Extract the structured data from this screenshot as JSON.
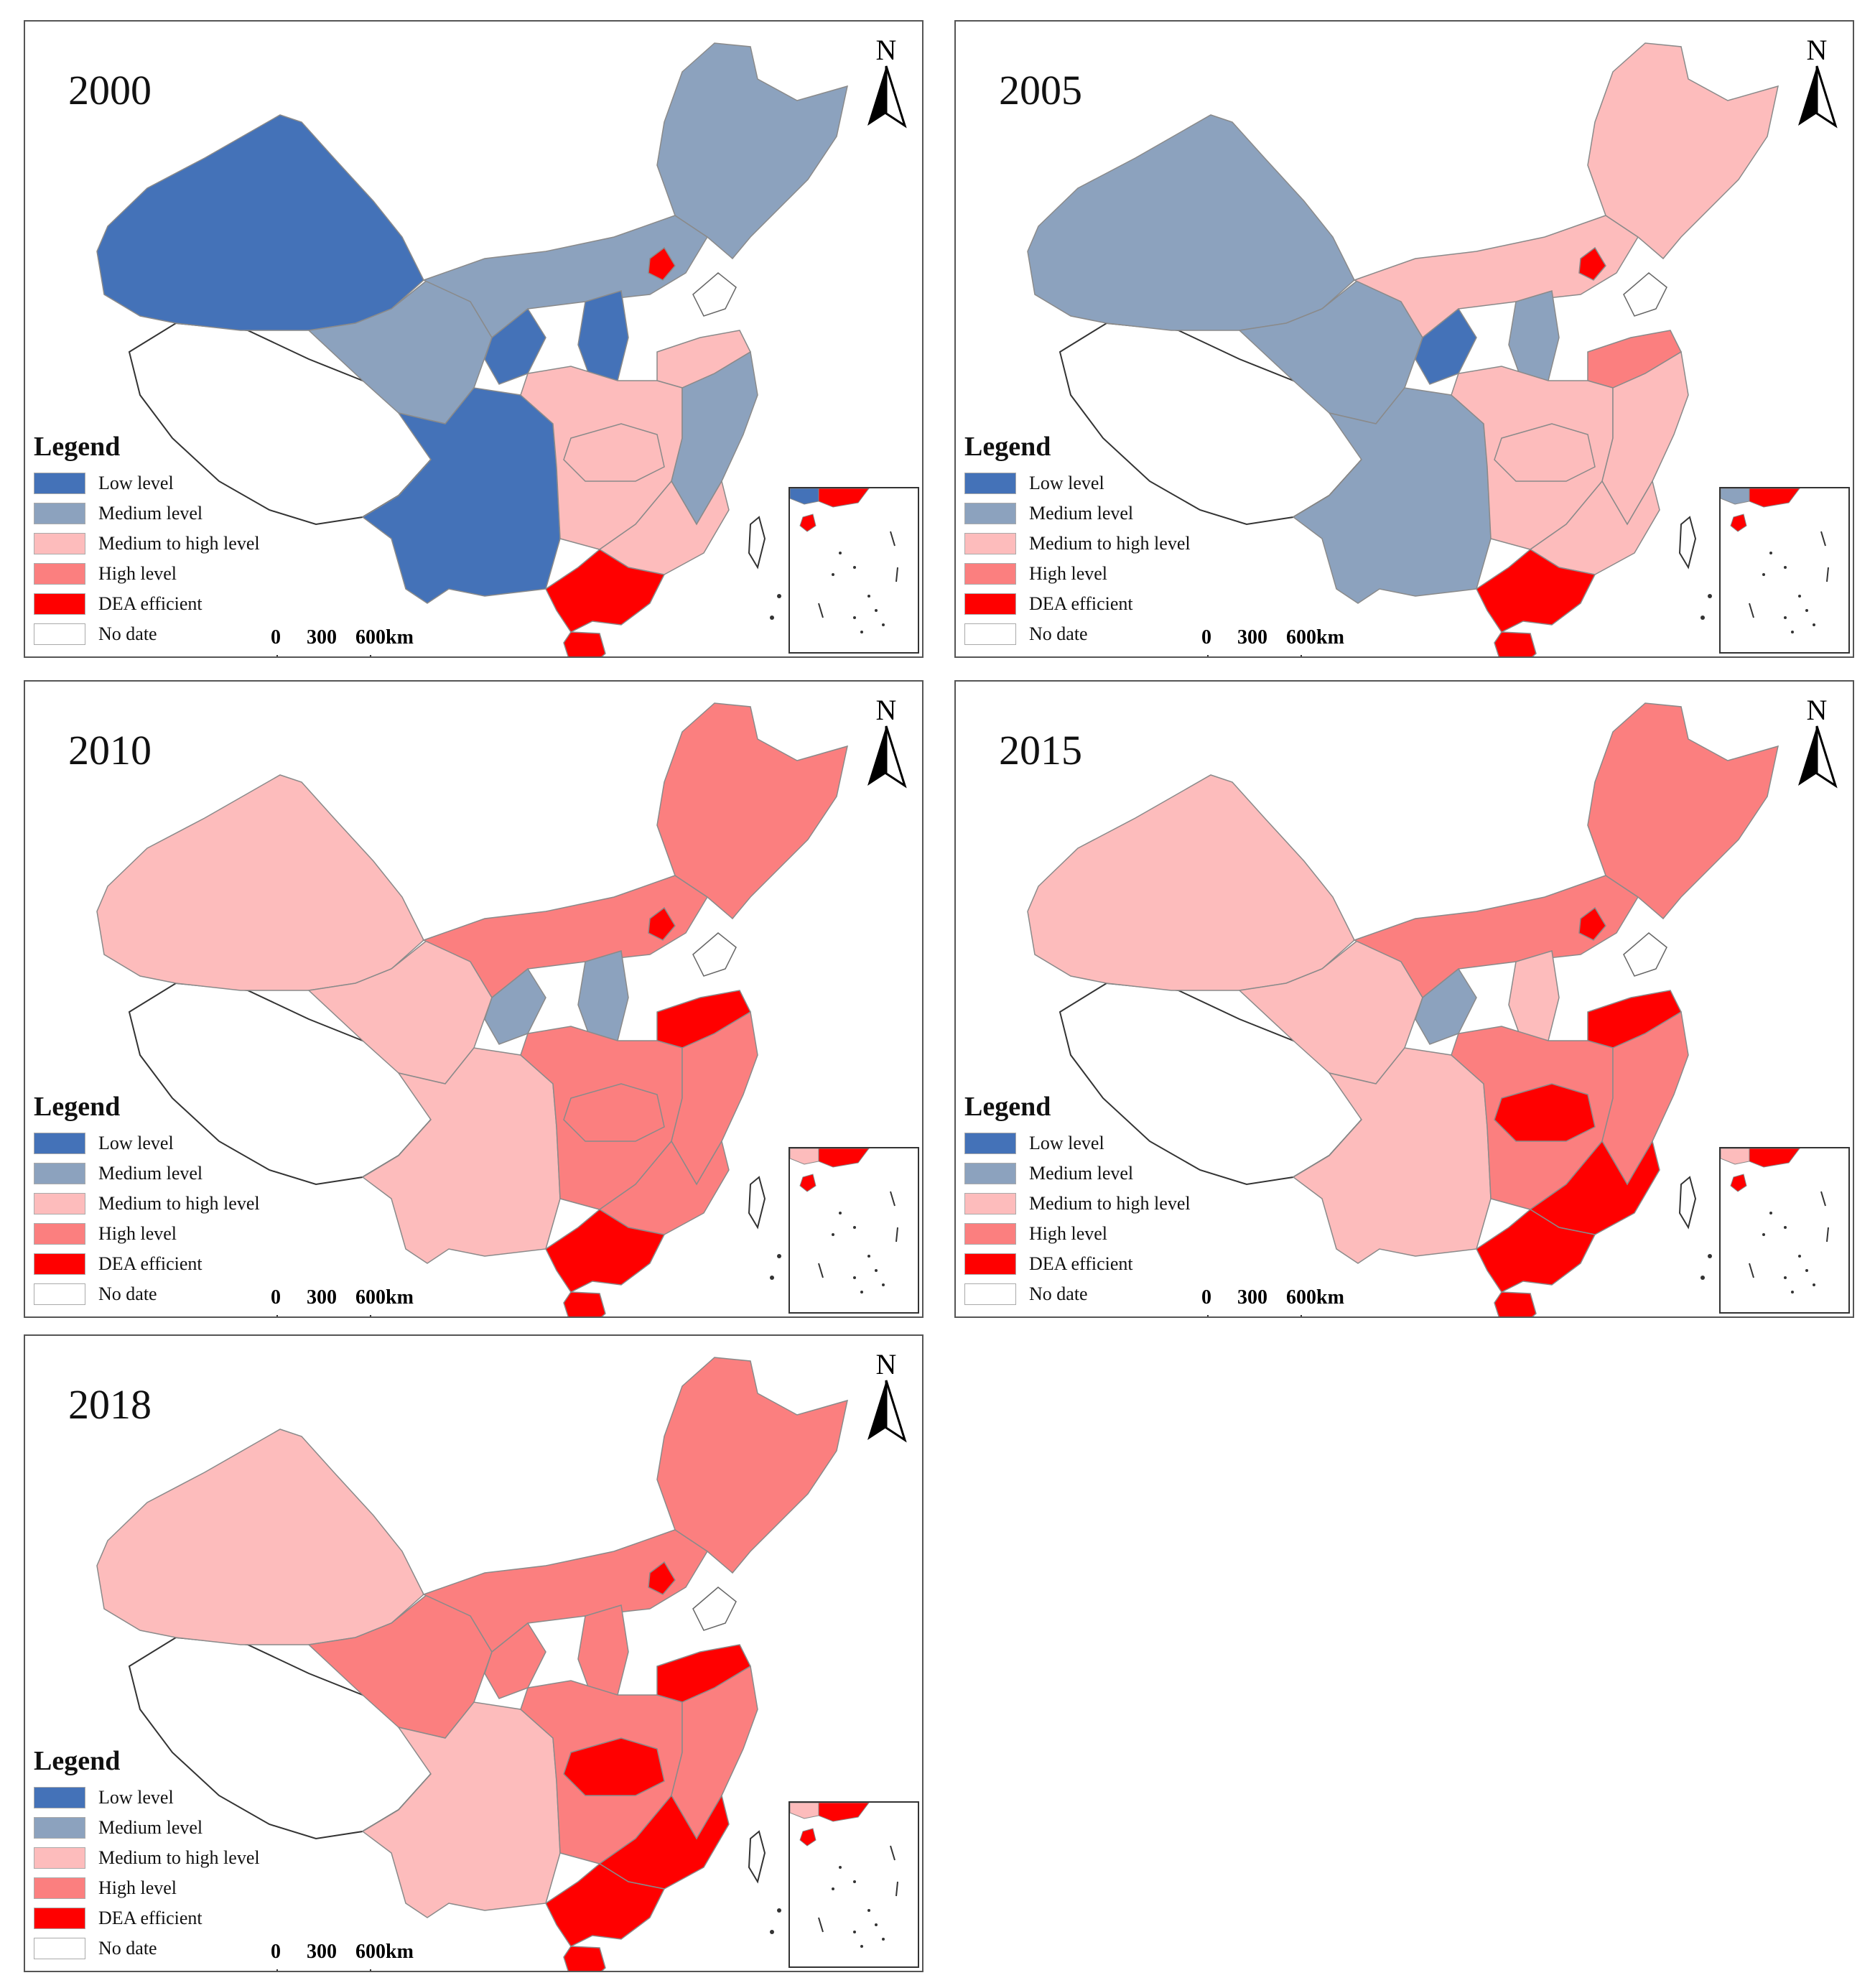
{
  "legend": {
    "title": "Legend",
    "items": [
      {
        "label": "Low level",
        "color": "#4472b8"
      },
      {
        "label": "Medium level",
        "color": "#8ca2be"
      },
      {
        "label": "Medium to high level",
        "color": "#fdbcbc"
      },
      {
        "label": "High level",
        "color": "#fb7f7f"
      },
      {
        "label": "DEA efficient",
        "color": "#ff0000"
      },
      {
        "label": "No date",
        "color": "#ffffff"
      }
    ]
  },
  "scale_bar": {
    "labels": [
      "0",
      "300",
      "600km"
    ]
  },
  "north_label": "N",
  "panels": [
    {
      "year": "2000",
      "regions": {
        "nw": "low",
        "qinghai": "medium",
        "tibet": "nodata",
        "sw": "low",
        "north_c": "medium",
        "ne": "medium",
        "central": "medium_high",
        "east": "medium",
        "se": "medium_high",
        "guangdong": "dea",
        "hainan": "dea",
        "beijing": "dea",
        "shandong": "medium_high",
        "hubei": "medium_high",
        "ningxia": "low",
        "shanxi": "low"
      }
    },
    {
      "year": "2005",
      "regions": {
        "nw": "medium",
        "qinghai": "medium",
        "tibet": "nodata",
        "sw": "medium",
        "north_c": "medium_high",
        "ne": "medium_high",
        "central": "medium_high",
        "east": "medium_high",
        "se": "medium_high",
        "guangdong": "dea",
        "hainan": "dea",
        "beijing": "dea",
        "shandong": "high",
        "hubei": "medium_high",
        "ningxia": "low",
        "shanxi": "medium"
      }
    },
    {
      "year": "2010",
      "regions": {
        "nw": "medium_high",
        "qinghai": "medium_high",
        "tibet": "nodata",
        "sw": "medium_high",
        "north_c": "high",
        "ne": "high",
        "central": "high",
        "east": "high",
        "se": "high",
        "guangdong": "dea",
        "hainan": "dea",
        "beijing": "dea",
        "shandong": "dea",
        "hubei": "high",
        "ningxia": "medium",
        "shanxi": "medium"
      }
    },
    {
      "year": "2015",
      "regions": {
        "nw": "medium_high",
        "qinghai": "medium_high",
        "tibet": "nodata",
        "sw": "medium_high",
        "north_c": "high",
        "ne": "high",
        "central": "high",
        "east": "high",
        "se": "dea",
        "guangdong": "dea",
        "hainan": "dea",
        "beijing": "dea",
        "shandong": "dea",
        "hubei": "dea",
        "ningxia": "medium",
        "shanxi": "medium_high"
      }
    },
    {
      "year": "2018",
      "regions": {
        "nw": "medium_high",
        "qinghai": "high",
        "tibet": "nodata",
        "sw": "medium_high",
        "north_c": "high",
        "ne": "high",
        "central": "high",
        "east": "high",
        "se": "dea",
        "guangdong": "dea",
        "hainan": "dea",
        "beijing": "dea",
        "shandong": "dea",
        "hubei": "dea",
        "ningxia": "high",
        "shanxi": "high"
      }
    }
  ]
}
